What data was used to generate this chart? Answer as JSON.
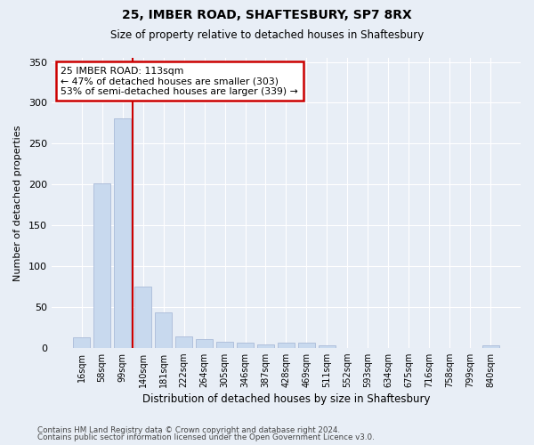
{
  "title1": "25, IMBER ROAD, SHAFTESBURY, SP7 8RX",
  "title2": "Size of property relative to detached houses in Shaftesbury",
  "xlabel": "Distribution of detached houses by size in Shaftesbury",
  "ylabel": "Number of detached properties",
  "categories": [
    "16sqm",
    "58sqm",
    "99sqm",
    "140sqm",
    "181sqm",
    "222sqm",
    "264sqm",
    "305sqm",
    "346sqm",
    "387sqm",
    "428sqm",
    "469sqm",
    "511sqm",
    "552sqm",
    "593sqm",
    "634sqm",
    "675sqm",
    "716sqm",
    "758sqm",
    "799sqm",
    "840sqm"
  ],
  "values": [
    13,
    201,
    281,
    75,
    43,
    14,
    11,
    7,
    6,
    4,
    6,
    6,
    3,
    0,
    0,
    0,
    0,
    0,
    0,
    0,
    3
  ],
  "bar_color": "#c8d9ee",
  "bar_edge_color": "#aabbd8",
  "vline_x": 2.5,
  "vline_color": "#cc0000",
  "annotation_text": "25 IMBER ROAD: 113sqm\n← 47% of detached houses are smaller (303)\n53% of semi-detached houses are larger (339) →",
  "annotation_box_facecolor": "#ffffff",
  "annotation_box_edgecolor": "#cc0000",
  "ylim": [
    0,
    355
  ],
  "yticks": [
    0,
    50,
    100,
    150,
    200,
    250,
    300,
    350
  ],
  "bg_color": "#e8eef6",
  "grid_color": "#ffffff",
  "footer1": "Contains HM Land Registry data © Crown copyright and database right 2024.",
  "footer2": "Contains public sector information licensed under the Open Government Licence v3.0."
}
